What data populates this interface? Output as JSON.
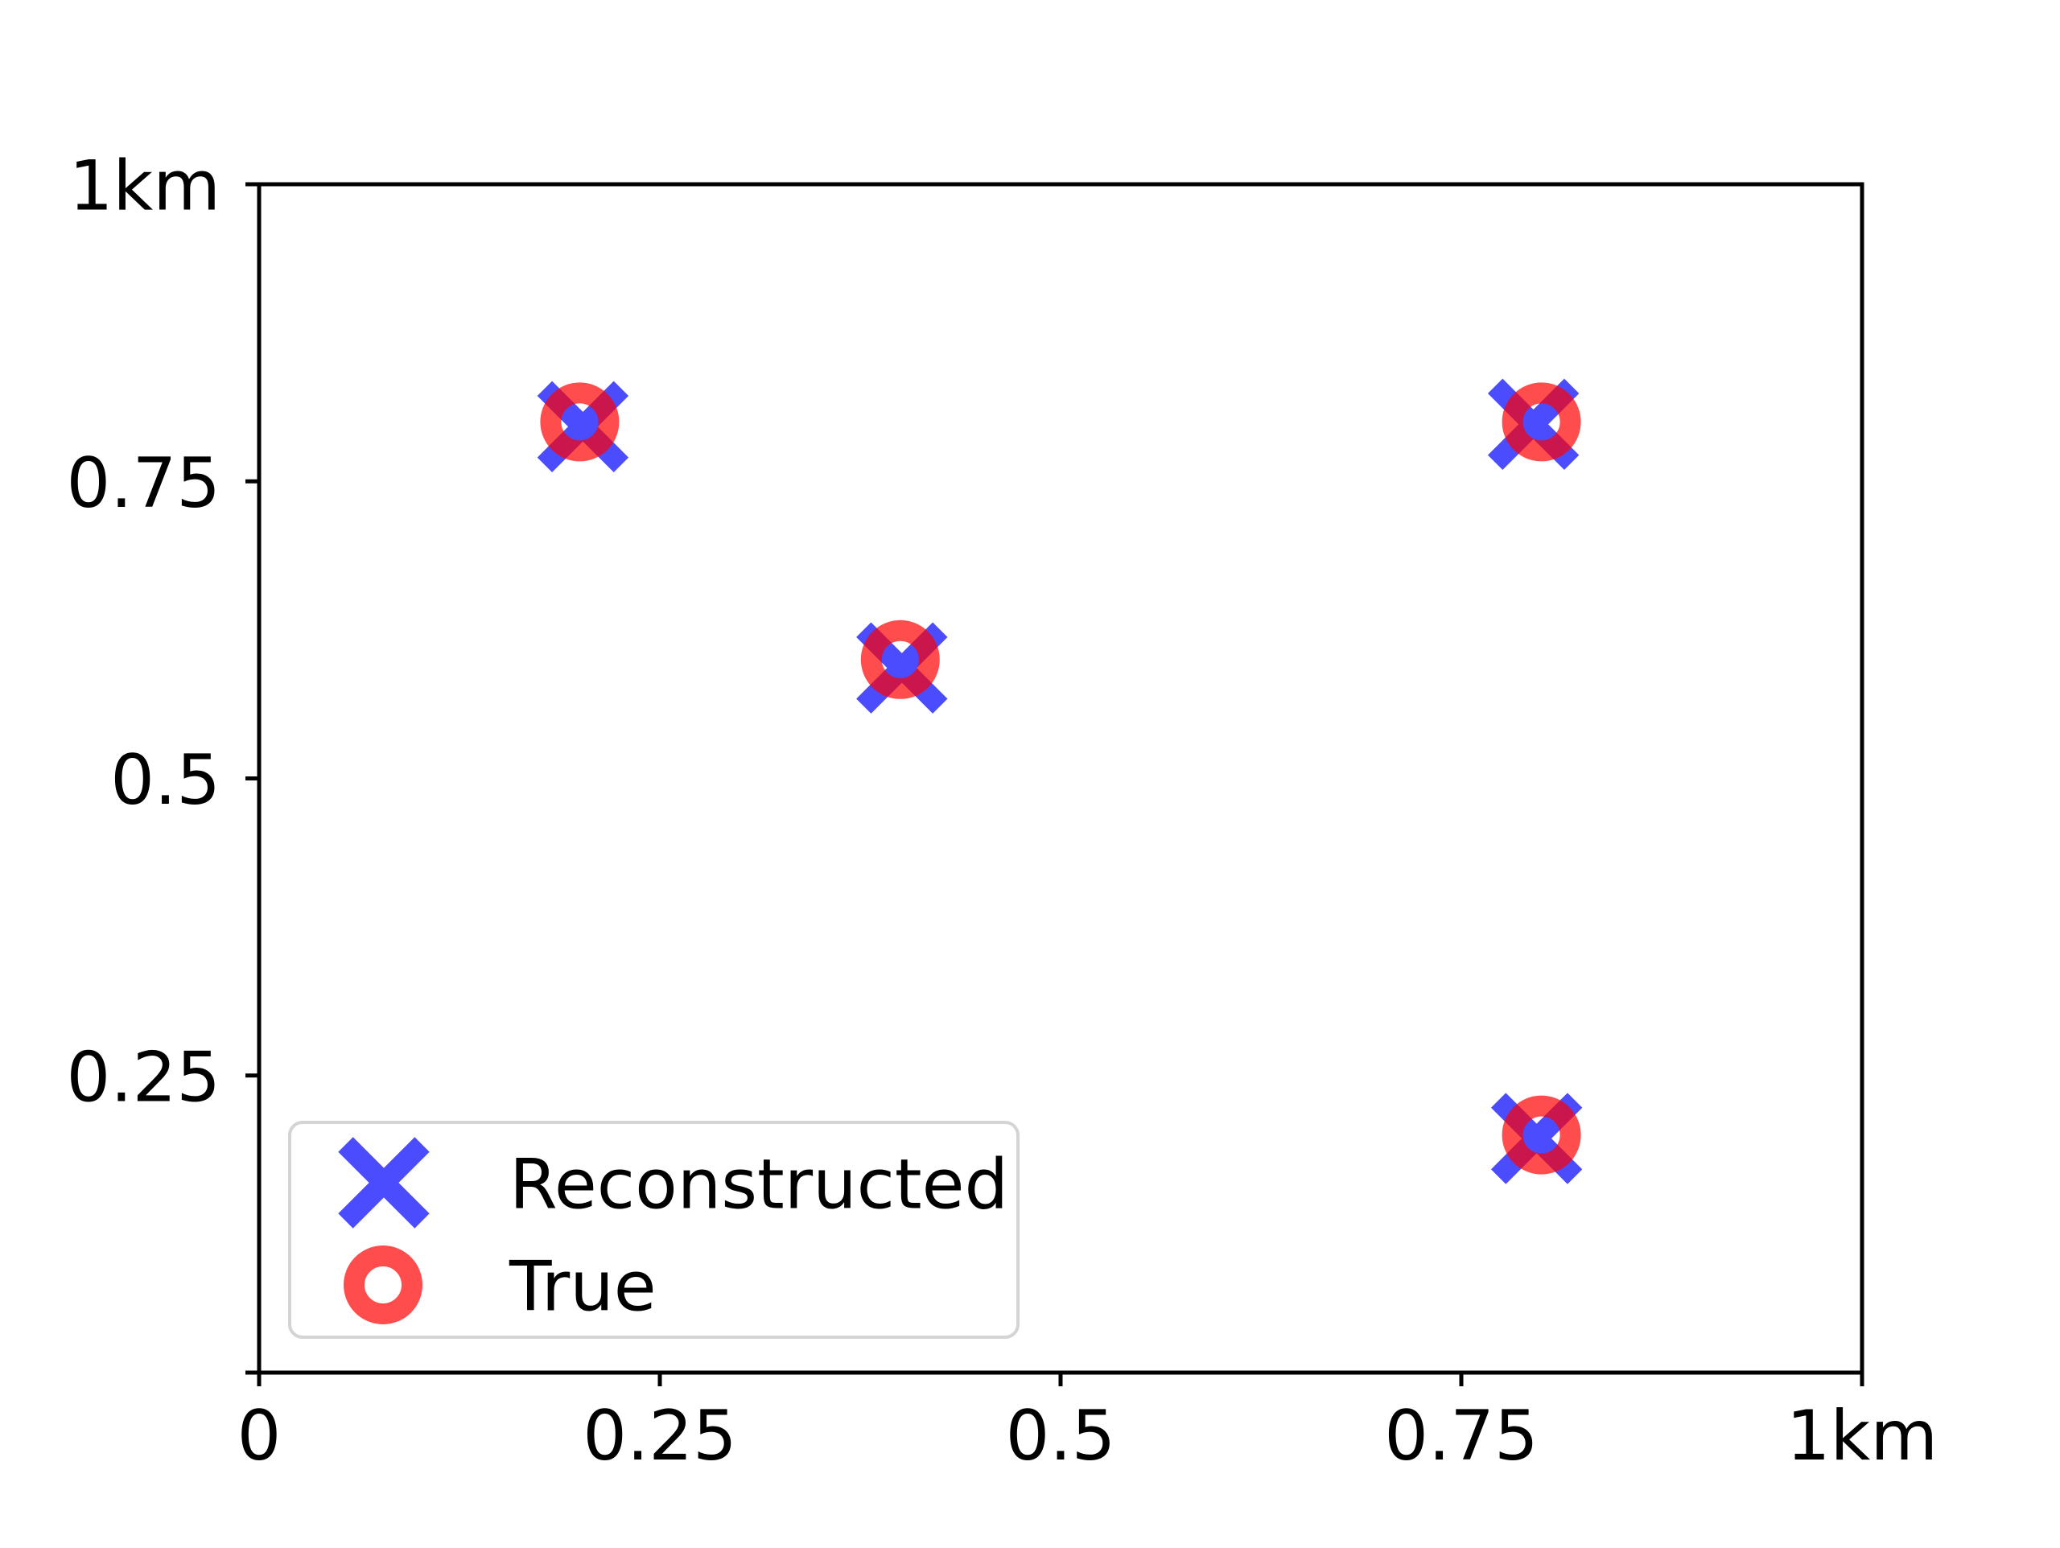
{
  "figure": {
    "background_color": "#ffffff",
    "text_color": "#000000",
    "spine_color": "#000000"
  },
  "chart_data": {
    "type": "scatter",
    "title": "",
    "xlabel": "",
    "ylabel": "",
    "xlim": [
      0,
      1
    ],
    "ylim": [
      0,
      1
    ],
    "grid": false,
    "x_ticks": [
      {
        "value": 0,
        "label": "0"
      },
      {
        "value": 0.25,
        "label": "0.25"
      },
      {
        "value": 0.5,
        "label": "0.5"
      },
      {
        "value": 0.75,
        "label": "0.75"
      },
      {
        "value": 1,
        "label": "1km"
      }
    ],
    "y_ticks": [
      {
        "value": 0,
        "label": ""
      },
      {
        "value": 0.25,
        "label": "0.25"
      },
      {
        "value": 0.5,
        "label": "0.5"
      },
      {
        "value": 0.75,
        "label": "0.75"
      },
      {
        "value": 1,
        "label": "1km"
      }
    ],
    "series": [
      {
        "name": "Reconstructed",
        "marker": "x",
        "color": "#0000ff",
        "alpha": 0.7,
        "points": [
          [
            0.202,
            0.796
          ],
          [
            0.401,
            0.593
          ],
          [
            0.795,
            0.798
          ],
          [
            0.797,
            0.197
          ]
        ]
      },
      {
        "name": "True",
        "marker": "o",
        "color": "#ff0000",
        "alpha": 0.7,
        "points": [
          [
            0.2,
            0.8
          ],
          [
            0.4,
            0.6
          ],
          [
            0.8,
            0.8
          ],
          [
            0.8,
            0.2
          ]
        ]
      }
    ],
    "legend": {
      "position": "lower left",
      "border_color": "#d4d4d4",
      "background_color": "#ffffff",
      "entries": [
        {
          "label": "Reconstructed",
          "marker": "x",
          "color": "#0000ff"
        },
        {
          "label": "True",
          "marker": "o",
          "color": "#ff0000"
        }
      ]
    }
  }
}
